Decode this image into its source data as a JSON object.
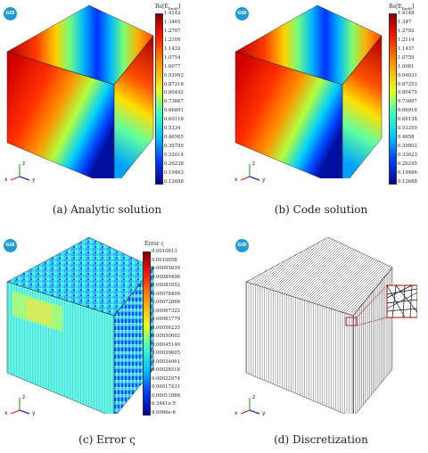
{
  "logo_text": "GiD",
  "panels": [
    {
      "caption": "(a) Analytic solution",
      "cb_title": "Re[E",
      "cb_sub": "Rinfd",
      "ticks": [
        "1.4142",
        "1.3465",
        "1.2787",
        "1.2109",
        "1.1432",
        "1.0754",
        "1.0077",
        "0.93993",
        "0.87218",
        "0.80442",
        "0.73667",
        "0.66891",
        "0.60116",
        "0.5334",
        "0.46565",
        "0.39789",
        "0.33014",
        "0.26238",
        "0.19463",
        "0.12688"
      ]
    },
    {
      "caption": "(b) Code solution",
      "cb_title": "Re[E",
      "cb_sub": "Rinfd",
      "ticks": [
        "1.4148",
        "1.347",
        "1.2792",
        "1.2114",
        "1.1437",
        "1.0759",
        "1.0081",
        "0.94031",
        "0.87253",
        "0.80475",
        "0.73697",
        "0.66916",
        "0.60138",
        "0.53359",
        "0.4658",
        "0.39802",
        "0.33023",
        "0.26245",
        "0.19466",
        "0.12688"
      ]
    },
    {
      "caption": "(c) Error ς",
      "cb_title": "Error ς",
      "ticks": [
        "0.0010613",
        "0.0010058",
        "0.00095039",
        "0.00089496",
        "0.00083952",
        "0.00078409",
        "0.00072866",
        "0.00067322",
        "0.00061779",
        "0.00056235",
        "0.00050692",
        "0.00045149",
        "0.00039605",
        "0.00034061",
        "0.00028518",
        "0.00022974",
        "0.00017431",
        "0.00011888",
        "6.3441e-5",
        "8.0066e-6"
      ]
    },
    {
      "caption": "(d) Discretization"
    }
  ],
  "axes": {
    "x": "x",
    "y": "y",
    "z": "z"
  },
  "colors": {
    "jet": [
      "#7f0000",
      "#d10000",
      "#ff3a00",
      "#ff9c00",
      "#ffee00",
      "#a8ff50",
      "#40ffbe",
      "#00c8ff",
      "#0068ff",
      "#0010ff",
      "#00008f"
    ]
  }
}
